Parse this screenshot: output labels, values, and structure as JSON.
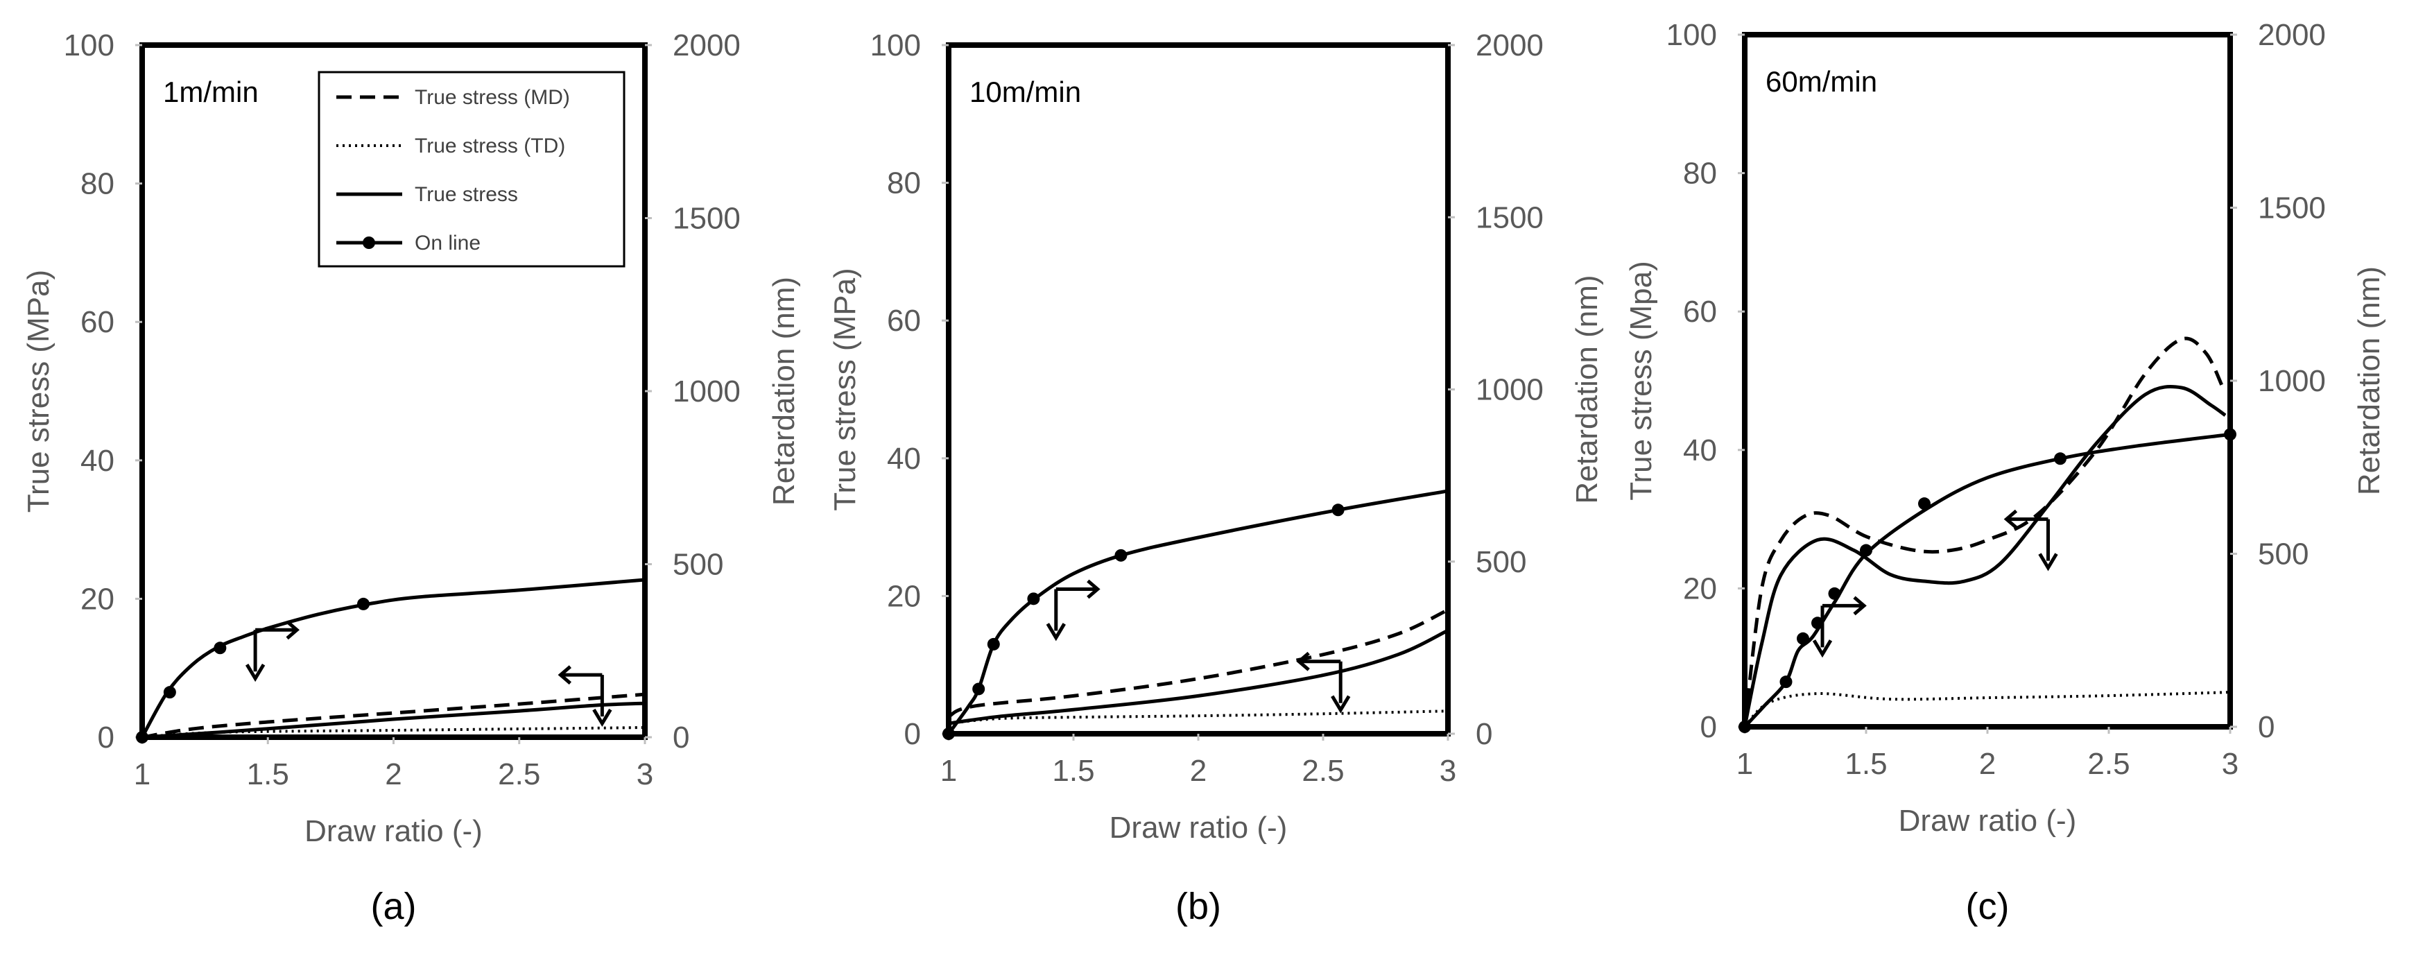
{
  "chart_data": [
    {
      "type": "line",
      "panel_label": "(a)",
      "speed_label": "1m/min",
      "xlabel": "Draw ratio (-)",
      "ylabel_left": "True stress (MPa)",
      "ylabel_right": "Retardation (nm)",
      "x_ticks": [
        "1",
        "1.5",
        "2",
        "2.5",
        "3"
      ],
      "y_left_ticks": [
        "0",
        "20",
        "40",
        "60",
        "80",
        "100"
      ],
      "y_right_ticks": [
        "0",
        "500",
        "1000",
        "1500",
        "2000"
      ],
      "xlim": [
        1,
        3
      ],
      "ylim_left": [
        0,
        100
      ],
      "ylim_right": [
        0,
        2000
      ],
      "grid": false,
      "legend": {
        "placement": "top-right",
        "entries": [
          "True stress (MD)",
          "True stress (TD)",
          "True stress",
          "On line"
        ]
      },
      "series": [
        {
          "name": "True stress (MD)",
          "axis": "left",
          "style": "dashed",
          "x": [
            1,
            1.2,
            1.5,
            2,
            2.5,
            3
          ],
          "y": [
            0,
            1.2,
            2.2,
            3.5,
            4.8,
            6.2
          ]
        },
        {
          "name": "True stress (TD)",
          "axis": "left",
          "style": "dotted",
          "x": [
            1,
            1.3,
            2,
            2.5,
            3
          ],
          "y": [
            0,
            0.7,
            1.0,
            1.2,
            1.4
          ]
        },
        {
          "name": "True stress",
          "axis": "left",
          "style": "solid",
          "x": [
            1,
            1.3,
            1.6,
            2,
            2.5,
            2.8,
            3
          ],
          "y": [
            0,
            0.7,
            1.5,
            2.6,
            3.8,
            4.6,
            4.9
          ]
        },
        {
          "name": "On line",
          "axis": "right",
          "style": "solid-markers",
          "x": [
            1,
            1.1,
            1.2,
            1.3,
            1.4,
            1.5,
            1.7,
            1.9,
            2.1,
            2.5,
            3
          ],
          "y": [
            0,
            130,
            210,
            260,
            290,
            315,
            355,
            385,
            405,
            425,
            455
          ],
          "markers_x": [
            1,
            1.11,
            1.31,
            1.88
          ],
          "markers_y": [
            0,
            130,
            258,
            385
          ]
        }
      ],
      "annotations": [
        {
          "type": "axis-arrow",
          "points_to": "right",
          "x": 1.45,
          "y_axis": "left",
          "y": 15.5
        },
        {
          "type": "axis-arrow",
          "points_to": "left",
          "x": 2.83,
          "y_axis": "left",
          "y": 9
        }
      ]
    },
    {
      "type": "line",
      "panel_label": "(b)",
      "speed_label": "10m/min",
      "xlabel": "Draw ratio (-)",
      "ylabel_left": "True stress (MPa)",
      "ylabel_right": "Retardation (nm)",
      "x_ticks": [
        "1",
        "1.5",
        "2",
        "2.5",
        "3"
      ],
      "y_left_ticks": [
        "0",
        "20",
        "40",
        "60",
        "80",
        "100"
      ],
      "y_right_ticks": [
        "0",
        "500",
        "1000",
        "1500",
        "2000"
      ],
      "xlim": [
        1,
        3
      ],
      "ylim_left": [
        0,
        100
      ],
      "ylim_right": [
        0,
        2000
      ],
      "grid": false,
      "series": [
        {
          "name": "True stress (MD)",
          "axis": "left",
          "style": "dashed",
          "x": [
            1,
            1.1,
            1.5,
            2,
            2.5,
            2.8,
            3
          ],
          "y": [
            2.5,
            4,
            5.5,
            8,
            11.5,
            14.5,
            18
          ]
        },
        {
          "name": "True stress (TD)",
          "axis": "left",
          "style": "dotted",
          "x": [
            1,
            1.2,
            1.5,
            2,
            2.5,
            3
          ],
          "y": [
            1.5,
            2.2,
            2.4,
            2.6,
            2.9,
            3.3
          ]
        },
        {
          "name": "True stress",
          "axis": "left",
          "style": "solid",
          "x": [
            1,
            1.2,
            1.5,
            2,
            2.5,
            2.8,
            3
          ],
          "y": [
            1.5,
            2.5,
            3.5,
            5.5,
            8.5,
            11.5,
            15
          ]
        },
        {
          "name": "On line",
          "axis": "right",
          "style": "solid-markers",
          "x": [
            1,
            1.08,
            1.12,
            1.18,
            1.25,
            1.35,
            1.5,
            1.7,
            2,
            2.56,
            3
          ],
          "y": [
            0,
            80,
            130,
            260,
            330,
            395,
            465,
            520,
            570,
            650,
            705
          ],
          "markers_x": [
            1,
            1.12,
            1.18,
            1.34,
            1.69,
            2.56
          ],
          "markers_y": [
            0,
            130,
            260,
            392,
            518,
            650
          ]
        }
      ],
      "annotations": [
        {
          "type": "axis-arrow",
          "points_to": "right",
          "x": 1.43,
          "y_axis": "left",
          "y": 21
        },
        {
          "type": "axis-arrow",
          "points_to": "left",
          "x": 2.57,
          "y_axis": "left",
          "y": 10.5
        }
      ]
    },
    {
      "type": "line",
      "panel_label": "(c)",
      "speed_label": "60m/min",
      "xlabel": "Draw ratio (-)",
      "ylabel_left": "True stress (Mpa)",
      "ylabel_right": "Retardation (nm)",
      "x_ticks": [
        "1",
        "1.5",
        "2",
        "2.5",
        "3"
      ],
      "y_left_ticks": [
        "0",
        "20",
        "40",
        "60",
        "80",
        "100"
      ],
      "y_right_ticks": [
        "0",
        "500",
        "1000",
        "1500",
        "2000"
      ],
      "xlim": [
        1,
        3
      ],
      "ylim_left": [
        0,
        100
      ],
      "ylim_right": [
        0,
        2000
      ],
      "grid": false,
      "series": [
        {
          "name": "True stress (MD)",
          "axis": "left",
          "style": "dashed",
          "x": [
            1,
            1.07,
            1.15,
            1.25,
            1.35,
            1.5,
            1.7,
            1.85,
            2,
            2.2,
            2.45,
            2.65,
            2.8,
            2.9,
            2.97
          ],
          "y": [
            0,
            20,
            27,
            30.5,
            30.5,
            27.5,
            25.5,
            25.5,
            27,
            30.5,
            40,
            51,
            56,
            54,
            49
          ]
        },
        {
          "name": "True stress (TD)",
          "axis": "left",
          "style": "dotted",
          "x": [
            1,
            1.1,
            1.3,
            1.6,
            2,
            2.5,
            3
          ],
          "y": [
            0,
            3.5,
            4.8,
            4,
            4.2,
            4.5,
            5
          ]
        },
        {
          "name": "True stress",
          "axis": "left",
          "style": "solid",
          "x": [
            1,
            1.07,
            1.15,
            1.3,
            1.45,
            1.6,
            1.75,
            1.9,
            2.05,
            2.25,
            2.45,
            2.65,
            2.8,
            2.92,
            2.98
          ],
          "y": [
            0,
            12,
            22,
            27,
            25.5,
            22,
            21,
            21,
            23.5,
            32,
            41,
            48,
            49,
            46.5,
            45
          ]
        },
        {
          "name": "On line",
          "axis": "right",
          "style": "solid-markers",
          "x": [
            1,
            1.08,
            1.17,
            1.22,
            1.28,
            1.37,
            1.5,
            1.75,
            2,
            2.3,
            2.6,
            3
          ],
          "y": [
            0,
            60,
            130,
            220,
            260,
            360,
            500,
            630,
            720,
            775,
            810,
            845
          ],
          "markers_x": [
            1,
            1.17,
            1.24,
            1.3,
            1.37,
            1.5,
            1.74,
            2.3,
            3
          ],
          "markers_y": [
            0,
            130,
            255,
            300,
            385,
            510,
            645,
            775,
            845
          ]
        }
      ],
      "annotations": [
        {
          "type": "axis-arrow",
          "points_to": "right",
          "x": 1.32,
          "y_axis": "left",
          "y": 17.5
        },
        {
          "type": "axis-arrow",
          "points_to": "left",
          "x": 2.25,
          "y_axis": "left",
          "y": 30
        }
      ]
    }
  ]
}
